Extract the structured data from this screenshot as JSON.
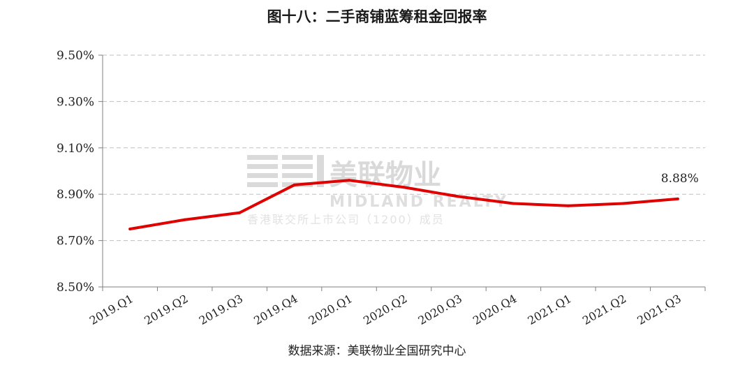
{
  "title": "图十八：二手商铺蓝筹租金回报率",
  "source": "数据来源：美联物业全国研究中心",
  "watermark": {
    "cn": "美联物业",
    "en": "MIDLAND REALTY",
    "sub": "香港联交所上市公司（1200）成员"
  },
  "colors": {
    "line": "#e00000",
    "grid": "#bfbfbf",
    "axis": "#7f7f7f"
  },
  "chart_data": {
    "type": "line",
    "categories": [
      "2019.Q1",
      "2019.Q2",
      "2019.Q3",
      "2019.Q4",
      "2020.Q1",
      "2020.Q2",
      "2020.Q3",
      "2020.Q4",
      "2021.Q1",
      "2021.Q2",
      "2021.Q3"
    ],
    "series": [
      {
        "values": [
          8.75,
          8.79,
          8.82,
          8.94,
          8.96,
          8.93,
          8.89,
          8.86,
          8.85,
          8.86,
          8.88
        ]
      }
    ],
    "ylim": [
      8.5,
      9.5
    ],
    "yticks": [
      8.5,
      8.7,
      8.9,
      9.1,
      9.3,
      9.5
    ],
    "ytick_labels": [
      "8.50%",
      "8.70%",
      "8.90%",
      "9.10%",
      "9.30%",
      "9.50%"
    ],
    "annotations": [
      {
        "category": "2021.Q3",
        "text": "8.88%"
      }
    ],
    "grid": true,
    "legend": "none",
    "xlabel": "",
    "ylabel": ""
  }
}
